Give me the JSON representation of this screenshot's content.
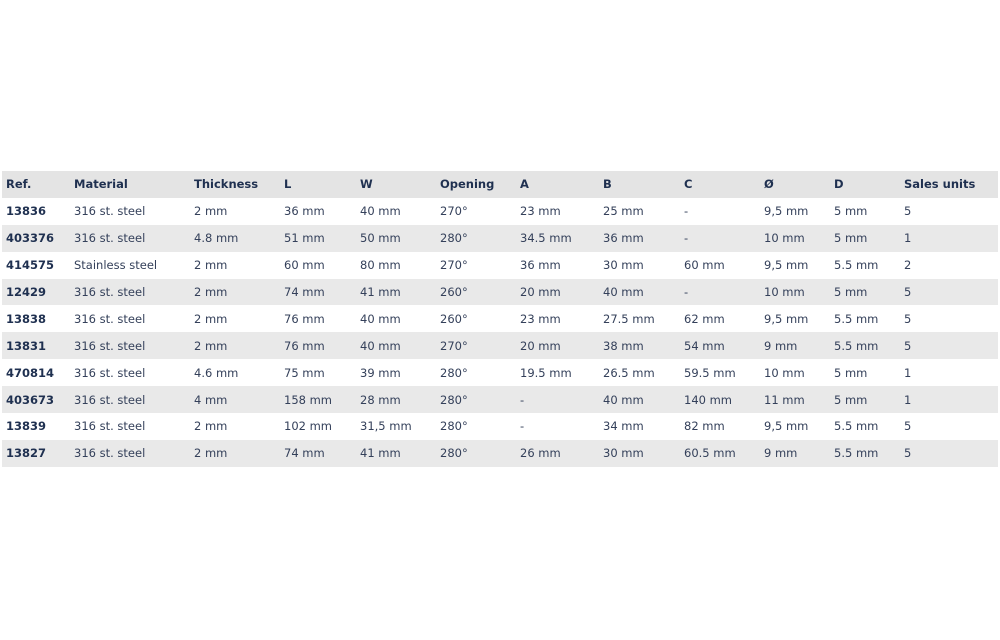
{
  "table": {
    "headers": [
      "Ref.",
      "Material",
      "Thickness",
      "L",
      "W",
      "Opening",
      "A",
      "B",
      "C",
      "Ø",
      "D",
      "Sales units"
    ],
    "rows": [
      [
        "13836",
        "316 st. steel",
        "2 mm",
        "36 mm",
        "40 mm",
        "270°",
        "23 mm",
        "25 mm",
        "-",
        "9,5 mm",
        "5 mm",
        "5"
      ],
      [
        "403376",
        "316 st. steel",
        "4.8 mm",
        "51 mm",
        "50 mm",
        "280°",
        "34.5 mm",
        "36 mm",
        "-",
        "10 mm",
        "5 mm",
        "1"
      ],
      [
        "414575",
        "Stainless steel",
        "2 mm",
        "60 mm",
        "80 mm",
        "270°",
        "36 mm",
        "30 mm",
        "60 mm",
        "9,5 mm",
        "5.5 mm",
        "2"
      ],
      [
        "12429",
        "316 st. steel",
        "2 mm",
        "74 mm",
        "41 mm",
        "260°",
        "20 mm",
        "40 mm",
        "-",
        "10 mm",
        "5 mm",
        "5"
      ],
      [
        "13838",
        "316 st. steel",
        "2 mm",
        "76 mm",
        "40 mm",
        "260°",
        "23 mm",
        "27.5 mm",
        "62 mm",
        "9,5 mm",
        "5.5 mm",
        "5"
      ],
      [
        "13831",
        "316 st. steel",
        "2 mm",
        "76 mm",
        "40 mm",
        "270°",
        "20 mm",
        "38 mm",
        "54 mm",
        "9 mm",
        "5.5 mm",
        "5"
      ],
      [
        "470814",
        "316 st. steel",
        "4.6 mm",
        "75 mm",
        "39 mm",
        "280°",
        "19.5 mm",
        "26.5 mm",
        "59.5 mm",
        "10 mm",
        "5 mm",
        "1"
      ],
      [
        "403673",
        "316 st. steel",
        "4 mm",
        "158 mm",
        "28 mm",
        "280°",
        "-",
        "40 mm",
        "140 mm",
        "11 mm",
        "5 mm",
        "1"
      ],
      [
        "13839",
        "316 st. steel",
        "2 mm",
        "102 mm",
        "31,5 mm",
        "280°",
        "-",
        "34 mm",
        "82 mm",
        "9,5 mm",
        "5.5 mm",
        "5"
      ],
      [
        "13827",
        "316 st. steel",
        "2 mm",
        "74 mm",
        "41 mm",
        "280°",
        "26 mm",
        "30 mm",
        "60.5 mm",
        "9 mm",
        "5.5 mm",
        "5"
      ]
    ]
  },
  "colors": {
    "header_bg": "#e4e4e4",
    "stripe_bg": "#e9e9e9",
    "text": "#24324a"
  }
}
